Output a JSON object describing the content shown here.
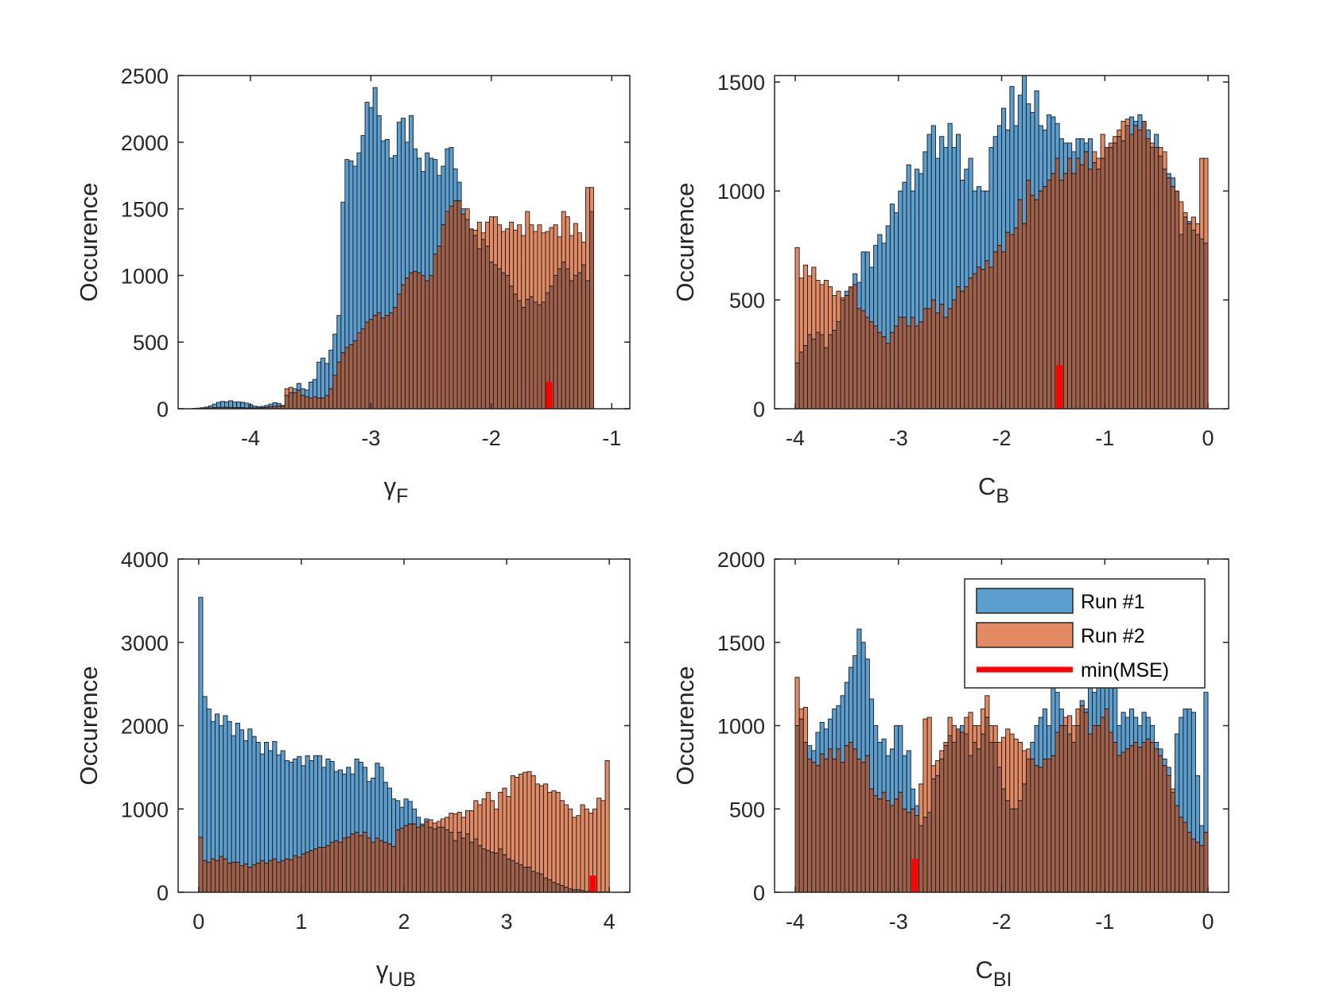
{
  "figure": {
    "colors": {
      "run1": "#5b9fd1",
      "run2": "#e38a63",
      "overlap": "#a0604a",
      "marker": "#ff0000",
      "axis": "#262626"
    }
  },
  "legend": {
    "entries": [
      "Run #1",
      "Run #2",
      "min(MSE)"
    ]
  },
  "chart_data": [
    {
      "type": "bar",
      "panel": "top-left",
      "ylabel": "Occurence",
      "xlabel": {
        "main": "γ",
        "sub": "F"
      },
      "xlim": [
        -4.6,
        -0.85
      ],
      "ylim": [
        0,
        2500
      ],
      "xticks": [
        -4,
        -3,
        -2,
        -1
      ],
      "yticks": [
        0,
        500,
        1000,
        1500,
        2000,
        2500
      ],
      "bin_width": 0.0333,
      "marker": {
        "x": -1.52,
        "height": 200
      },
      "series": [
        {
          "name": "Run #1",
          "x0": -4.48,
          "values": [
            3,
            5,
            8,
            13,
            22,
            35,
            48,
            55,
            52,
            60,
            50,
            52,
            48,
            42,
            30,
            20,
            15,
            18,
            25,
            35,
            45,
            40,
            25,
            100,
            120,
            150,
            190,
            150,
            140,
            200,
            220,
            350,
            380,
            340,
            440,
            560,
            700,
            1550,
            1870,
            1860,
            1820,
            1920,
            2050,
            2300,
            2260,
            2410,
            2200,
            2010,
            2020,
            1880,
            1900,
            2150,
            2180,
            2000,
            2200,
            1950,
            1880,
            1780,
            1920,
            1880,
            1870,
            1750,
            1820,
            1950,
            1960,
            1800,
            1700,
            1500,
            1420,
            1350,
            1300,
            1200,
            1270,
            1220,
            1100,
            1080,
            1050,
            1020,
            1000,
            920,
            860,
            810,
            760,
            820,
            840,
            800,
            780,
            800,
            870,
            920,
            1000,
            1050,
            1100,
            1050,
            960,
            1000,
            1020,
            1080,
            960,
            1480
          ]
        },
        {
          "name": "Run #2",
          "x0": -4.48,
          "values": [
            2,
            3,
            3,
            4,
            6,
            8,
            10,
            10,
            10,
            10,
            8,
            8,
            8,
            6,
            6,
            6,
            6,
            8,
            10,
            15,
            18,
            20,
            20,
            150,
            160,
            120,
            140,
            100,
            90,
            80,
            90,
            80,
            80,
            100,
            150,
            250,
            350,
            420,
            460,
            480,
            510,
            570,
            600,
            650,
            670,
            700,
            720,
            680,
            700,
            720,
            760,
            860,
            930,
            980,
            1020,
            1030,
            1020,
            1000,
            960,
            1000,
            1160,
            1220,
            1380,
            1480,
            1520,
            1560,
            1560,
            1460,
            1500,
            1350,
            1340,
            1400,
            1320,
            1400,
            1440,
            1440,
            1380,
            1330,
            1350,
            1400,
            1340,
            1380,
            1300,
            1480,
            1380,
            1330,
            1380,
            1320,
            1330,
            1360,
            1380,
            1290,
            1480,
            1440,
            1300,
            1390,
            1320,
            1250,
            1660,
            1660
          ]
        }
      ]
    },
    {
      "type": "bar",
      "panel": "top-right",
      "ylabel": "Occurence",
      "xlabel": {
        "main": "C",
        "sub": "B"
      },
      "xlim": [
        -4.2,
        0.2
      ],
      "ylim": [
        0,
        1530
      ],
      "xticks": [
        -4,
        -3,
        -2,
        -1,
        0
      ],
      "yticks": [
        0,
        500,
        1000,
        1500
      ],
      "bin_width": 0.04,
      "marker": {
        "x": -1.44,
        "height": 200
      },
      "series": [
        {
          "name": "Run #1",
          "x0": -4.0,
          "values": [
            210,
            260,
            290,
            340,
            320,
            350,
            340,
            280,
            340,
            360,
            400,
            500,
            540,
            560,
            620,
            580,
            720,
            720,
            650,
            750,
            800,
            760,
            840,
            940,
            900,
            1000,
            1040,
            1120,
            1000,
            1100,
            1080,
            1180,
            1260,
            1300,
            1150,
            1250,
            1200,
            1310,
            1200,
            1260,
            1050,
            1100,
            1150,
            1000,
            1020,
            1000,
            1000,
            1200,
            1250,
            1300,
            1380,
            1280,
            1480,
            1300,
            1440,
            1530,
            1400,
            1360,
            1460,
            1300,
            1280,
            1350,
            1340,
            1310,
            1240,
            1220,
            1220,
            1180,
            1240,
            1240,
            1220,
            1240,
            1130,
            1100,
            1150,
            1200,
            1200,
            1220,
            1250,
            1230,
            1300,
            1340,
            1320,
            1350,
            1320,
            1280,
            1200,
            1260,
            1160,
            1100,
            1080,
            1060,
            1000,
            800,
            880,
            860,
            820,
            800,
            780,
            760
          ]
        },
        {
          "name": "Run #2",
          "x0": -4.0,
          "values": [
            740,
            600,
            660,
            610,
            650,
            590,
            570,
            590,
            560,
            520,
            540,
            510,
            520,
            560,
            570,
            460,
            450,
            420,
            400,
            380,
            350,
            330,
            300,
            350,
            380,
            420,
            420,
            380,
            420,
            380,
            400,
            460,
            460,
            500,
            440,
            480,
            420,
            460,
            500,
            560,
            540,
            560,
            600,
            620,
            650,
            640,
            680,
            650,
            720,
            750,
            720,
            810,
            800,
            830,
            960,
            850,
            1050,
            980,
            960,
            1000,
            1020,
            1050,
            1080,
            1150,
            1050,
            1080,
            1150,
            1080,
            1150,
            1120,
            1180,
            1100,
            1180,
            1150,
            1260,
            1200,
            1220,
            1250,
            1280,
            1320,
            1330,
            1260,
            1300,
            1280,
            1320,
            1240,
            1220,
            1200,
            1200,
            1180,
            1060,
            1020,
            1000,
            950,
            900,
            850,
            880,
            850,
            1150,
            1150
          ]
        }
      ]
    },
    {
      "type": "bar",
      "panel": "bottom-left",
      "ylabel": "Occurence",
      "xlabel": {
        "main": "γ",
        "sub": "UB"
      },
      "xlim": [
        -0.2,
        4.2
      ],
      "ylim": [
        0,
        4000
      ],
      "xticks": [
        0,
        1,
        2,
        3,
        4
      ],
      "yticks": [
        0,
        1000,
        2000,
        3000,
        4000
      ],
      "bin_width": 0.04,
      "marker": {
        "x": 3.84,
        "height": 200
      },
      "series": [
        {
          "name": "Run #1",
          "x0": 0.0,
          "values": [
            3540,
            2350,
            2200,
            2050,
            2140,
            2000,
            2120,
            2050,
            1880,
            2030,
            1950,
            1820,
            1960,
            1870,
            1800,
            1660,
            1800,
            1700,
            1810,
            1650,
            1700,
            1580,
            1560,
            1600,
            1630,
            1520,
            1640,
            1580,
            1640,
            1640,
            1500,
            1600,
            1570,
            1450,
            1470,
            1420,
            1500,
            1420,
            1600,
            1560,
            1500,
            1330,
            1370,
            1550,
            1500,
            1320,
            1250,
            1120,
            1100,
            1020,
            1120,
            1090,
            1000,
            900,
            820,
            880,
            780,
            760,
            780,
            780,
            750,
            720,
            620,
            720,
            650,
            700,
            600,
            640,
            560,
            520,
            500,
            480,
            470,
            520,
            450,
            400,
            380,
            350,
            330,
            300,
            300,
            250,
            230,
            220,
            170,
            150,
            120,
            100,
            80,
            60,
            40,
            30,
            30,
            20,
            10,
            10,
            5,
            5,
            3,
            3
          ]
        },
        {
          "name": "Run #2",
          "x0": 0.0,
          "values": [
            660,
            380,
            360,
            400,
            380,
            430,
            400,
            350,
            360,
            360,
            320,
            340,
            300,
            330,
            350,
            380,
            350,
            380,
            400,
            360,
            380,
            400,
            390,
            440,
            420,
            460,
            480,
            500,
            520,
            540,
            540,
            560,
            600,
            620,
            600,
            650,
            660,
            700,
            720,
            680,
            720,
            650,
            600,
            650,
            620,
            600,
            580,
            550,
            750,
            770,
            800,
            820,
            820,
            780,
            800,
            850,
            870,
            830,
            850,
            880,
            900,
            950,
            940,
            960,
            900,
            980,
            980,
            1100,
            1050,
            1120,
            1200,
            1100,
            1000,
            1200,
            1250,
            1150,
            1400,
            1380,
            1420,
            1440,
            1450,
            1400,
            1300,
            1280,
            1300,
            1200,
            1220,
            1200,
            1100,
            1050,
            1000,
            900,
            920,
            1050,
            1000,
            950,
            1000,
            1130,
            1100,
            1580
          ]
        }
      ]
    },
    {
      "type": "bar",
      "panel": "bottom-right",
      "ylabel": "Occurence",
      "xlabel": {
        "main": "C",
        "sub": "BI"
      },
      "xlim": [
        -4.2,
        0.2
      ],
      "ylim": [
        0,
        2000
      ],
      "xticks": [
        -4,
        -3,
        -2,
        -1,
        0
      ],
      "yticks": [
        0,
        500,
        1000,
        1500,
        2000
      ],
      "bin_width": 0.04,
      "marker": {
        "x": -2.84,
        "height": 200
      },
      "series": [
        {
          "name": "Run #1",
          "x0": -4.0,
          "values": [
            1000,
            1040,
            900,
            880,
            850,
            960,
            1020,
            980,
            1040,
            1100,
            1120,
            1180,
            1260,
            1350,
            1420,
            1580,
            1500,
            1400,
            1160,
            1000,
            900,
            920,
            820,
            860,
            1000,
            1000,
            820,
            850,
            620,
            520,
            400,
            450,
            480,
            680,
            700,
            800,
            880,
            940,
            900,
            980,
            1000,
            950,
            820,
            900,
            860,
            950,
            1050,
            900,
            900,
            750,
            620,
            550,
            500,
            500,
            550,
            650,
            800,
            900,
            1000,
            1050,
            1100,
            1000,
            1300,
            1200,
            1100,
            1000,
            950,
            900,
            1000,
            1150,
            1100,
            1300,
            1200,
            1400,
            1420,
            1470,
            1320,
            1300,
            1000,
            1080,
            1050,
            1100,
            1050,
            1000,
            1080,
            1050,
            1000,
            900,
            860,
            800,
            750,
            600,
            950,
            1050,
            1100,
            1100,
            1080,
            700,
            400,
            1200
          ]
        },
        {
          "name": "Run #2",
          "x0": -4.0,
          "values": [
            1290,
            1100,
            1110,
            800,
            780,
            760,
            830,
            800,
            860,
            800,
            860,
            780,
            880,
            900,
            860,
            800,
            780,
            820,
            620,
            580,
            560,
            600,
            550,
            520,
            560,
            600,
            500,
            480,
            500,
            460,
            650,
            1040,
            1050,
            760,
            790,
            850,
            900,
            1050,
            1000,
            980,
            960,
            1050,
            1080,
            1000,
            1000,
            1100,
            1180,
            1000,
            1000,
            900,
            930,
            980,
            950,
            920,
            900,
            850,
            860,
            800,
            760,
            750,
            800,
            800,
            820,
            960,
            1000,
            1050,
            1060,
            1000,
            1100,
            1120,
            1080,
            950,
            1000,
            1000,
            1050,
            1100,
            960,
            900,
            820,
            840,
            860,
            880,
            900,
            870,
            900,
            920,
            900,
            860,
            820,
            760,
            700,
            620,
            520,
            450,
            420,
            360,
            320,
            300,
            280,
            360
          ]
        }
      ]
    }
  ]
}
